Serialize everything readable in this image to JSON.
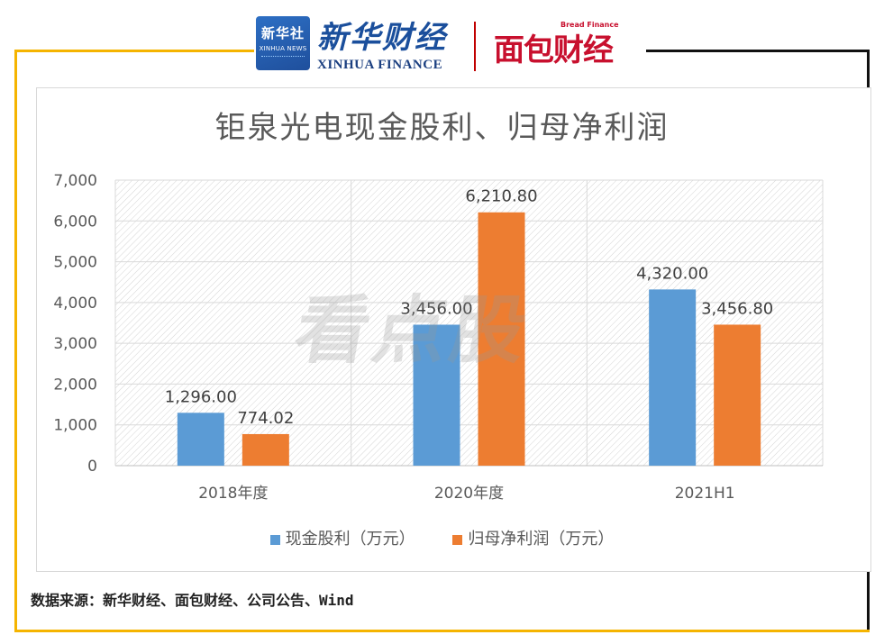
{
  "header": {
    "badge_cn": "新华社",
    "badge_en": "XINHUA NEWS",
    "brand_cn": "新华财经",
    "brand_en": "XINHUA FINANCE",
    "bread_cn": "面包财经",
    "bread_en": "Bread Finance"
  },
  "watermark": "看点股",
  "source_note": "数据来源：新华财经、面包财经、公司公告、Wind",
  "colors": {
    "series1": "#5b9bd5",
    "series2": "#ed7d31",
    "frame_gold": "#f5b400",
    "frame_dark": "#111111"
  },
  "chart_data": {
    "type": "bar",
    "title": "钜泉光电现金股利、归母净利润",
    "categories": [
      "2018年度",
      "2020年度",
      "2021H1"
    ],
    "series": [
      {
        "name": "现金股利（万元）",
        "values": [
          1296.0,
          3456.0,
          4320.0
        ],
        "labels": [
          "1,296.00",
          "3,456.00",
          "4,320.00"
        ]
      },
      {
        "name": "归母净利润（万元）",
        "values": [
          774.02,
          6210.8,
          3456.8
        ],
        "labels": [
          "774.02",
          "6,210.80",
          "3,456.80"
        ]
      }
    ],
    "ylim": [
      0,
      7000
    ],
    "yticks": [
      0,
      1000,
      2000,
      3000,
      4000,
      5000,
      6000,
      7000
    ],
    "ytick_labels": [
      "0",
      "1,000",
      "2,000",
      "3,000",
      "4,000",
      "5,000",
      "6,000",
      "7,000"
    ],
    "grid": true,
    "legend": "bottom"
  }
}
